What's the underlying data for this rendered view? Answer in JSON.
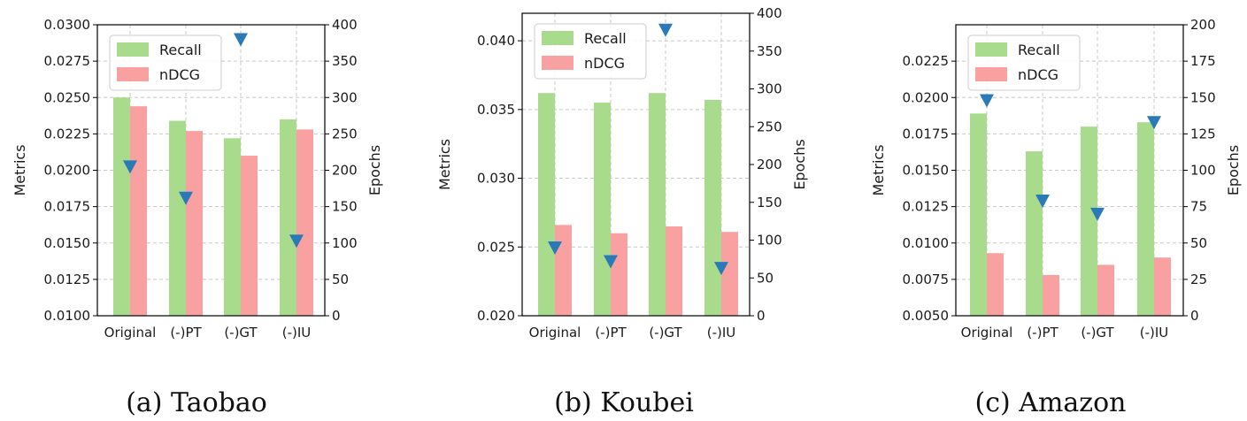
{
  "chart_data": [
    {
      "type": "bar",
      "caption": "(a)  Taobao",
      "categories": [
        "Original",
        "(-)PT",
        "(-)GT",
        "(-)IU"
      ],
      "ylabel": "Metrics",
      "ylabel_right": "Epochs",
      "ylim": [
        0.01,
        0.03
      ],
      "yticks": [
        "0.0100",
        "0.0125",
        "0.0150",
        "0.0175",
        "0.0200",
        "0.0225",
        "0.0250",
        "0.0275",
        "0.0300"
      ],
      "ylim_right": [
        0,
        400
      ],
      "yticks_right": [
        "0",
        "50",
        "100",
        "150",
        "200",
        "250",
        "300",
        "350",
        "400"
      ],
      "series": [
        {
          "name": "Recall",
          "values": [
            0.025,
            0.0234,
            0.0222,
            0.0235
          ],
          "color": "#a8dc8c"
        },
        {
          "name": "nDCG",
          "values": [
            0.0244,
            0.0227,
            0.021,
            0.0228
          ],
          "color": "#f9a0a0"
        }
      ],
      "epochs": {
        "values": [
          205,
          162,
          380,
          103
        ],
        "color": "#2a7ab8"
      },
      "grid": true,
      "legend": "top-left"
    },
    {
      "type": "bar",
      "caption": "(b)  Koubei",
      "categories": [
        "Original",
        "(-)PT",
        "(-)GT",
        "(-)IU"
      ],
      "ylabel": "Metrics",
      "ylabel_right": "Epochs",
      "ylim": [
        0.02,
        0.042
      ],
      "yticks": [
        "0.020",
        "0.025",
        "0.030",
        "0.035",
        "0.040"
      ],
      "ylim_right": [
        0,
        400
      ],
      "yticks_right": [
        "0",
        "50",
        "100",
        "150",
        "200",
        "250",
        "300",
        "350",
        "400"
      ],
      "series": [
        {
          "name": "Recall",
          "values": [
            0.0362,
            0.0355,
            0.0362,
            0.0357
          ],
          "color": "#a8dc8c"
        },
        {
          "name": "nDCG",
          "values": [
            0.0266,
            0.026,
            0.0265,
            0.0261
          ],
          "color": "#f9a0a0"
        }
      ],
      "epochs": {
        "values": [
          90,
          72,
          378,
          63
        ],
        "color": "#2a7ab8"
      },
      "grid": true,
      "legend": "top-left"
    },
    {
      "type": "bar",
      "caption": "(c)  Amazon",
      "categories": [
        "Original",
        "(-)PT",
        "(-)GT",
        "(-)IU"
      ],
      "ylabel": "Metrics",
      "ylabel_right": "Epochs",
      "ylim": [
        0.005,
        0.025
      ],
      "yticks": [
        "0.0050",
        "0.0075",
        "0.0100",
        "0.0125",
        "0.0150",
        "0.0175",
        "0.0200",
        "0.0225"
      ],
      "ylim_right": [
        0,
        200
      ],
      "yticks_right": [
        "0",
        "25",
        "50",
        "75",
        "100",
        "125",
        "150",
        "175",
        "200"
      ],
      "series": [
        {
          "name": "Recall",
          "values": [
            0.0189,
            0.0163,
            0.018,
            0.0183
          ],
          "color": "#a8dc8c"
        },
        {
          "name": "nDCG",
          "values": [
            0.0093,
            0.0078,
            0.0085,
            0.009
          ],
          "color": "#f9a0a0"
        }
      ],
      "epochs": {
        "values": [
          148,
          79,
          70,
          133
        ],
        "color": "#2a7ab8"
      },
      "grid": true,
      "legend": "top-left"
    }
  ]
}
